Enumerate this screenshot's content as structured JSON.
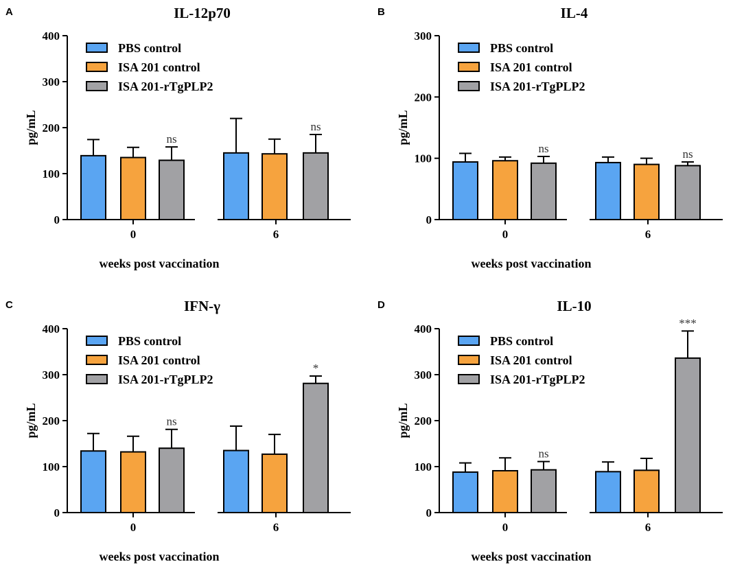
{
  "colors": {
    "PBS control": "#5aa5f2",
    "ISA 201 control": "#f6a33e",
    "ISA 201-rTgPLP2": "#a1a1a4",
    "axis": "#000000"
  },
  "chart_data": [
    {
      "panel": "A",
      "type": "bar",
      "title": "IL-12p70",
      "ylabel": "pg/mL",
      "xlabel": "weeks post vaccination",
      "ylim": [
        0,
        400
      ],
      "yticks": [
        0,
        100,
        200,
        300,
        400
      ],
      "categories": [
        "0",
        "6"
      ],
      "legend_position": "top-left",
      "series": [
        {
          "name": "PBS control",
          "values": [
            139,
            145
          ],
          "errors": [
            35,
            75
          ]
        },
        {
          "name": "ISA 201 control",
          "values": [
            135,
            143
          ],
          "errors": [
            22,
            32
          ]
        },
        {
          "name": "ISA 201-rTgPLP2",
          "values": [
            129,
            145
          ],
          "errors": [
            29,
            40
          ]
        }
      ],
      "significance": [
        "ns",
        "ns"
      ]
    },
    {
      "panel": "B",
      "type": "bar",
      "title": "IL-4",
      "ylabel": "pg/mL",
      "xlabel": "weeks post vaccination",
      "ylim": [
        0,
        300
      ],
      "yticks": [
        0,
        100,
        200,
        300
      ],
      "categories": [
        "0",
        "6"
      ],
      "legend_position": "top-left",
      "series": [
        {
          "name": "PBS control",
          "values": [
            94,
            93
          ],
          "errors": [
            14,
            9
          ]
        },
        {
          "name": "ISA 201 control",
          "values": [
            96,
            90
          ],
          "errors": [
            6,
            10
          ]
        },
        {
          "name": "ISA 201-rTgPLP2",
          "values": [
            92,
            88
          ],
          "errors": [
            11,
            6
          ]
        }
      ],
      "significance": [
        "ns",
        "ns"
      ]
    },
    {
      "panel": "C",
      "type": "bar",
      "title": "IFN-γ",
      "ylabel": "pg/mL",
      "xlabel": "weeks post vaccination",
      "ylim": [
        0,
        400
      ],
      "yticks": [
        0,
        100,
        200,
        300,
        400
      ],
      "categories": [
        "0",
        "6"
      ],
      "legend_position": "top-left",
      "series": [
        {
          "name": "PBS control",
          "values": [
            134,
            135
          ],
          "errors": [
            38,
            53
          ]
        },
        {
          "name": "ISA 201 control",
          "values": [
            132,
            127
          ],
          "errors": [
            34,
            43
          ]
        },
        {
          "name": "ISA 201-rTgPLP2",
          "values": [
            140,
            281
          ],
          "errors": [
            41,
            16
          ]
        }
      ],
      "significance": [
        "ns",
        "*"
      ]
    },
    {
      "panel": "D",
      "type": "bar",
      "title": "IL-10",
      "ylabel": "pg/mL",
      "xlabel": "weeks post vaccination",
      "ylim": [
        0,
        400
      ],
      "yticks": [
        0,
        100,
        200,
        300,
        400
      ],
      "categories": [
        "0",
        "6"
      ],
      "legend_position": "top-left",
      "series": [
        {
          "name": "PBS control",
          "values": [
            88,
            89
          ],
          "errors": [
            20,
            21
          ]
        },
        {
          "name": "ISA 201 control",
          "values": [
            91,
            92
          ],
          "errors": [
            28,
            26
          ]
        },
        {
          "name": "ISA 201-rTgPLP2",
          "values": [
            93,
            336
          ],
          "errors": [
            18,
            59
          ]
        }
      ],
      "significance": [
        "ns",
        "***"
      ]
    }
  ]
}
